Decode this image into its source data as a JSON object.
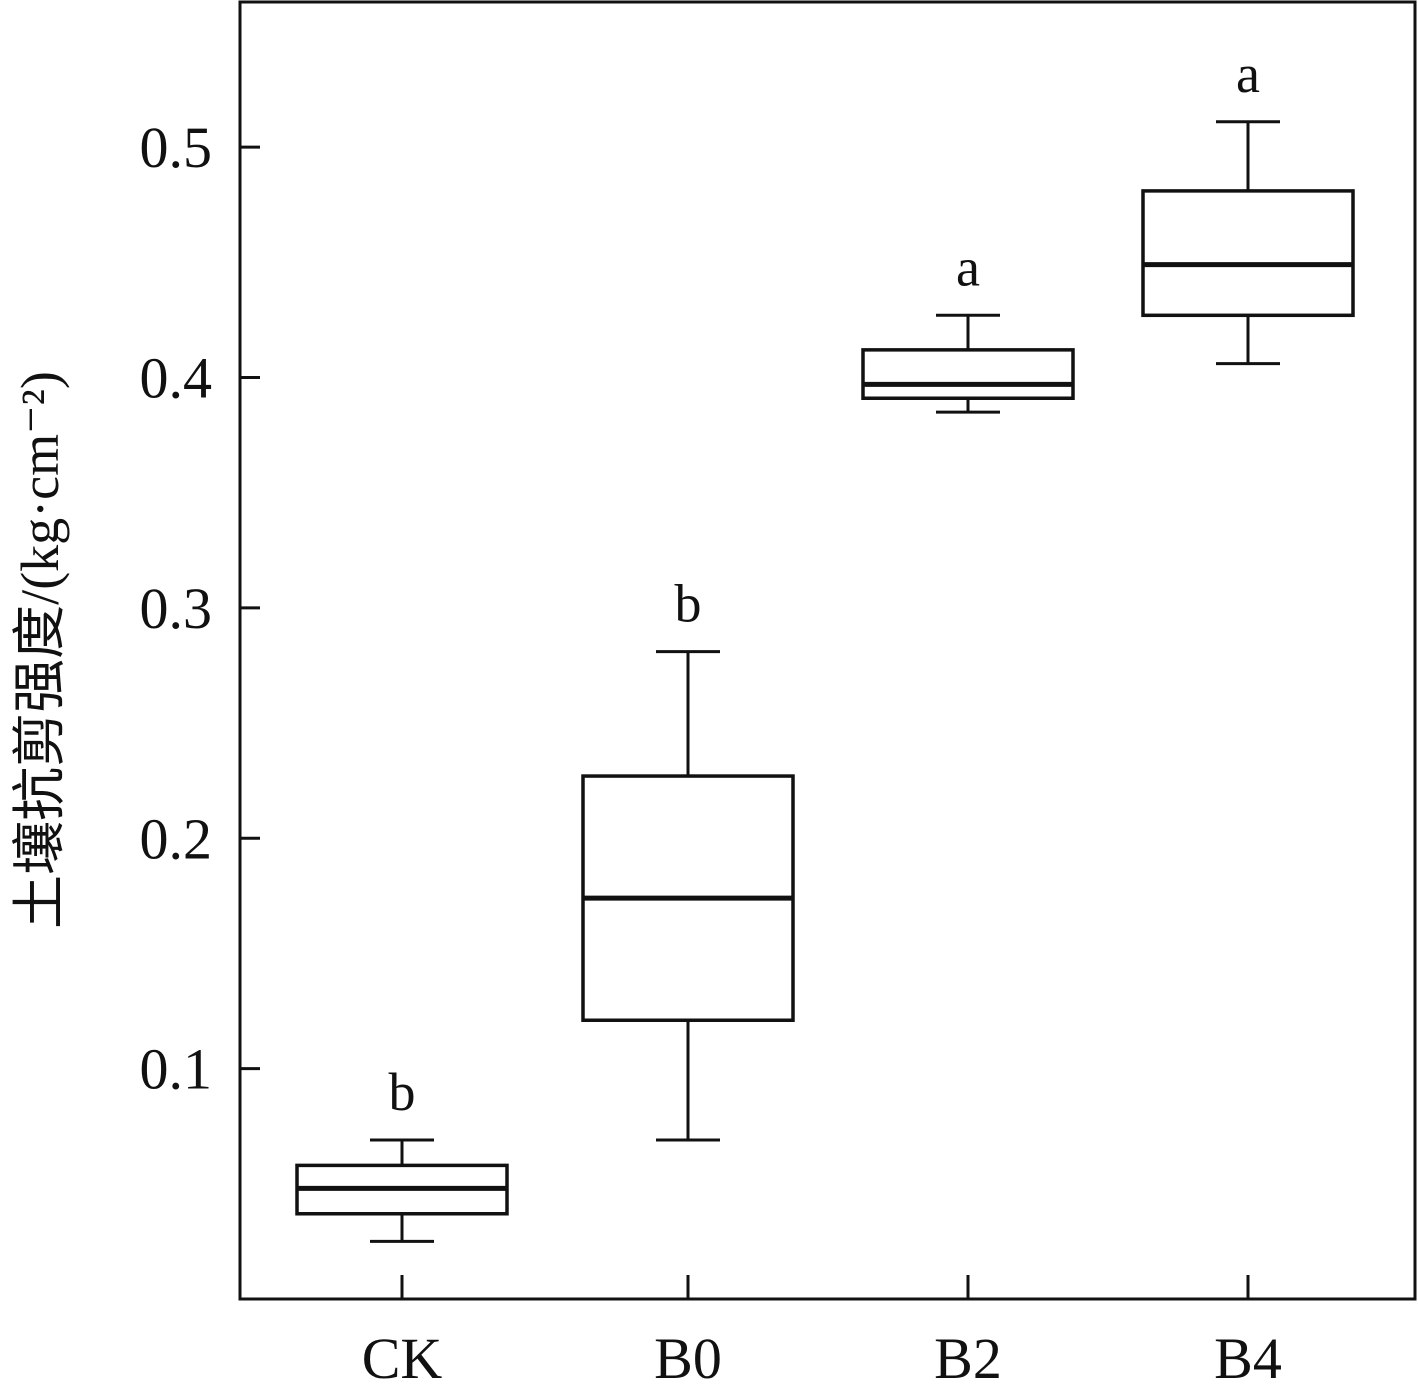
{
  "chart_data": {
    "type": "box",
    "title": "",
    "xlabel": "",
    "ylabel": "土壤抗剪强度/(kg·cm⁻²)",
    "ylim": [
      0,
      0.563
    ],
    "yticks": [
      0.1,
      0.2,
      0.3,
      0.4,
      0.5
    ],
    "ytick_labels": [
      "0.1",
      "0.2",
      "0.3",
      "0.4",
      "0.5"
    ],
    "grid": false,
    "legend": "none",
    "categories": [
      "CK",
      "B0",
      "B2",
      "B4"
    ],
    "boxes": [
      {
        "category": "CK",
        "min": 0.025,
        "q1": 0.037,
        "median": 0.048,
        "q3": 0.058,
        "max": 0.069,
        "significance": "b"
      },
      {
        "category": "B0",
        "min": 0.069,
        "q1": 0.121,
        "median": 0.174,
        "q3": 0.227,
        "max": 0.281,
        "significance": "b"
      },
      {
        "category": "B2",
        "min": 0.385,
        "q1": 0.391,
        "median": 0.397,
        "q3": 0.412,
        "max": 0.427,
        "significance": "a"
      },
      {
        "category": "B4",
        "min": 0.406,
        "q1": 0.427,
        "median": 0.449,
        "q3": 0.481,
        "max": 0.511,
        "significance": "a"
      }
    ],
    "colors": {
      "stroke": "#111111",
      "fill": "#ffffff"
    }
  }
}
